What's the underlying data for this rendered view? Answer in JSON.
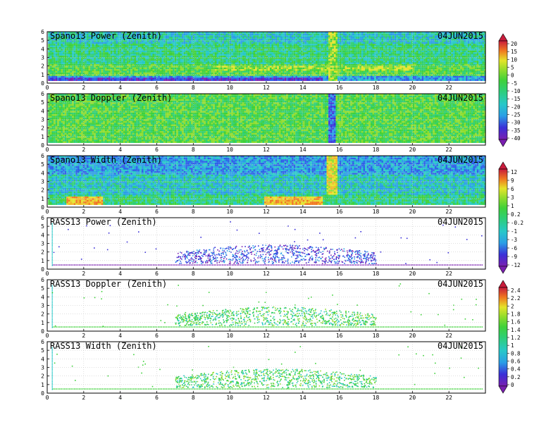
{
  "date": "04JUN2015",
  "chart_data": [
    {
      "type": "heatmap",
      "title": "Spano13 Power (Zenith)",
      "date": "04JUN2015",
      "x_ticks": [
        "0",
        "2",
        "4",
        "6",
        "8",
        "10",
        "12",
        "14",
        "16",
        "18",
        "20",
        "22"
      ],
      "y_ticks": [
        "0",
        "1",
        "2",
        "3",
        "4",
        "5",
        "6"
      ],
      "xlim": [
        0,
        24
      ],
      "ylim": [
        0,
        6
      ],
      "colorbar": "top"
    },
    {
      "type": "heatmap",
      "title": "Spano13 Doppler (Zenith)",
      "date": "04JUN2015",
      "x_ticks": [
        "0",
        "2",
        "4",
        "6",
        "8",
        "10",
        "12",
        "14",
        "16",
        "18",
        "20",
        "22"
      ],
      "y_ticks": [
        "0",
        "1",
        "2",
        "3",
        "4",
        "5",
        "6"
      ],
      "xlim": [
        0,
        24
      ],
      "ylim": [
        0,
        6
      ],
      "colorbar": "top"
    },
    {
      "type": "heatmap",
      "title": "Spano13 Width (Zenith)",
      "date": "04JUN2015",
      "x_ticks": [
        "0",
        "2",
        "4",
        "6",
        "8",
        "10",
        "12",
        "14",
        "16",
        "18",
        "20",
        "22"
      ],
      "y_ticks": [
        "0",
        "1",
        "2",
        "3",
        "4",
        "5",
        "6"
      ],
      "xlim": [
        0,
        24
      ],
      "ylim": [
        0,
        6
      ],
      "colorbar": "middle"
    },
    {
      "type": "scatter",
      "title": "RASS13 Power (Zenith)",
      "date": "04JUN2015",
      "x_ticks": [
        "0",
        "2",
        "4",
        "6",
        "8",
        "10",
        "12",
        "14",
        "16",
        "18",
        "20",
        "22"
      ],
      "y_ticks": [
        "0",
        "1",
        "2",
        "3",
        "4",
        "5",
        "6"
      ],
      "xlim": [
        0,
        24
      ],
      "ylim": [
        0,
        6
      ],
      "colorbar": "middle"
    },
    {
      "type": "scatter",
      "title": "RASS13 Doppler (Zenith)",
      "date": "04JUN2015",
      "x_ticks": [
        "0",
        "2",
        "4",
        "6",
        "8",
        "10",
        "12",
        "14",
        "16",
        "18",
        "20",
        "22"
      ],
      "y_ticks": [
        "0",
        "1",
        "2",
        "3",
        "4",
        "5",
        "6"
      ],
      "xlim": [
        0,
        24
      ],
      "ylim": [
        0,
        6
      ],
      "colorbar": "bottom"
    },
    {
      "type": "scatter",
      "title": "RASS13 Width (Zenith)",
      "date": "04JUN2015",
      "x_ticks": [
        "0",
        "2",
        "4",
        "6",
        "8",
        "10",
        "12",
        "14",
        "16",
        "18",
        "20",
        "22"
      ],
      "y_ticks": [
        "0",
        "1",
        "2",
        "3",
        "4",
        "5",
        "6"
      ],
      "xlim": [
        0,
        24
      ],
      "ylim": [
        0,
        6
      ],
      "colorbar": "bottom"
    }
  ],
  "colorbars": {
    "top": {
      "labels": [
        "20",
        "15",
        "10",
        "5",
        "0",
        "-5",
        "-10",
        "-15",
        "-20",
        "-25",
        "-30",
        "-35",
        "-40"
      ]
    },
    "middle": {
      "labels": [
        "12",
        "9",
        "6",
        "3",
        "1",
        "0.2",
        "-0.2",
        "-1",
        "-3",
        "-6",
        "-9",
        "-12"
      ]
    },
    "bottom": {
      "labels": [
        "2.4",
        "2.2",
        "2",
        "1.8",
        "1.6",
        "1.4",
        "1.2",
        "1",
        "0.8",
        "0.6",
        "0.4",
        "0.2",
        "0"
      ]
    }
  },
  "colors": {
    "scale": [
      "#7a1fb0",
      "#3a2fd8",
      "#2c5fe8",
      "#2a9ee6",
      "#27c8c8",
      "#2ecf72",
      "#3fd13a",
      "#8edc2c",
      "#e4e42a",
      "#f0b82a",
      "#f07820",
      "#e83020",
      "#c81c3c"
    ],
    "axis": "#000000",
    "grid": "#bfbfbf"
  }
}
